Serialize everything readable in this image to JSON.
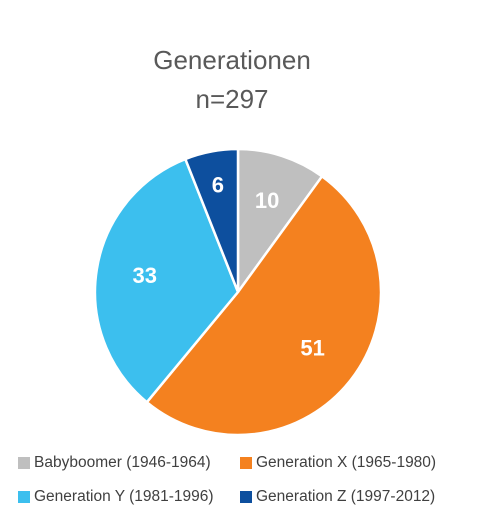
{
  "chart_data": {
    "type": "pie",
    "title": "Generationen",
    "subtitle": "n=297",
    "categories": [
      "Babyboomer (1946-1964)",
      "Generation X (1965-1980)",
      "Generation Y (1981-1996)",
      "Generation Z (1997-2012)"
    ],
    "values": [
      10,
      51,
      33,
      6
    ],
    "colors": [
      "#bfbfbf",
      "#f4811f",
      "#3cbfee",
      "#0d4f9e"
    ],
    "legend": "bottom"
  }
}
